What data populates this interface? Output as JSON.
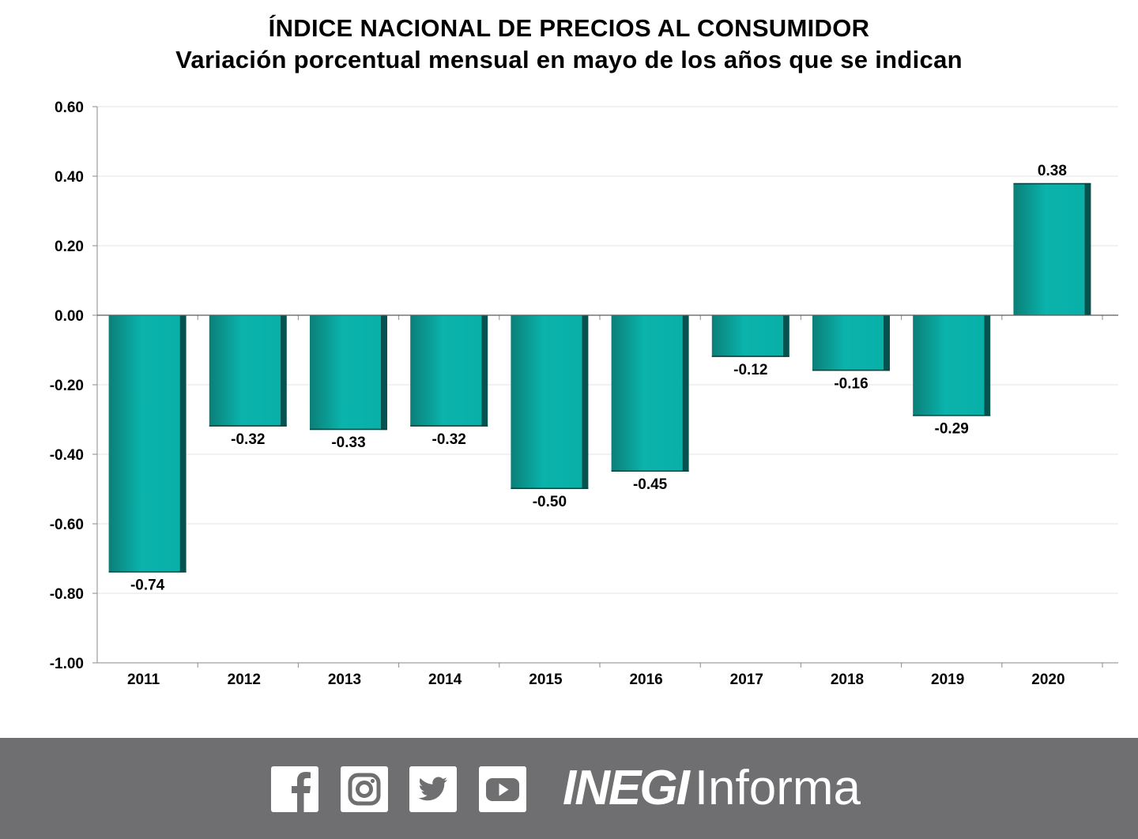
{
  "chart_data": {
    "type": "bar",
    "title": "ÍNDICE NACIONAL DE PRECIOS AL CONSUMIDOR",
    "subtitle": "Variación porcentual mensual en mayo de los años que se indican",
    "categories": [
      "2011",
      "2012",
      "2013",
      "2014",
      "2015",
      "2016",
      "2017",
      "2018",
      "2019",
      "2020"
    ],
    "values": [
      -0.74,
      -0.32,
      -0.33,
      -0.32,
      -0.5,
      -0.45,
      -0.12,
      -0.16,
      -0.29,
      0.38
    ],
    "value_labels": [
      "-0.74",
      "-0.32",
      "-0.33",
      "-0.32",
      "-0.50",
      "-0.45",
      "-0.12",
      "-0.16",
      "-0.29",
      "0.38"
    ],
    "y_ticks": [
      "0.60",
      "0.40",
      "0.20",
      "0.00",
      "-0.20",
      "-0.40",
      "-0.60",
      "-0.80",
      "-1.00"
    ],
    "y_tick_values": [
      0.6,
      0.4,
      0.2,
      0.0,
      -0.2,
      -0.4,
      -0.6,
      -0.8,
      -1.0
    ],
    "ylim": [
      -1.0,
      0.6
    ],
    "xlabel": "",
    "ylabel": "",
    "grid": true,
    "bar_color": "#0ab0a8",
    "bar_dark_color": "#05524e"
  },
  "footer": {
    "icons": [
      "facebook-icon",
      "instagram-icon",
      "twitter-icon",
      "youtube-icon"
    ],
    "brand_bold": "INEGI",
    "brand_light": "Informa",
    "background": "#6f6f71"
  }
}
